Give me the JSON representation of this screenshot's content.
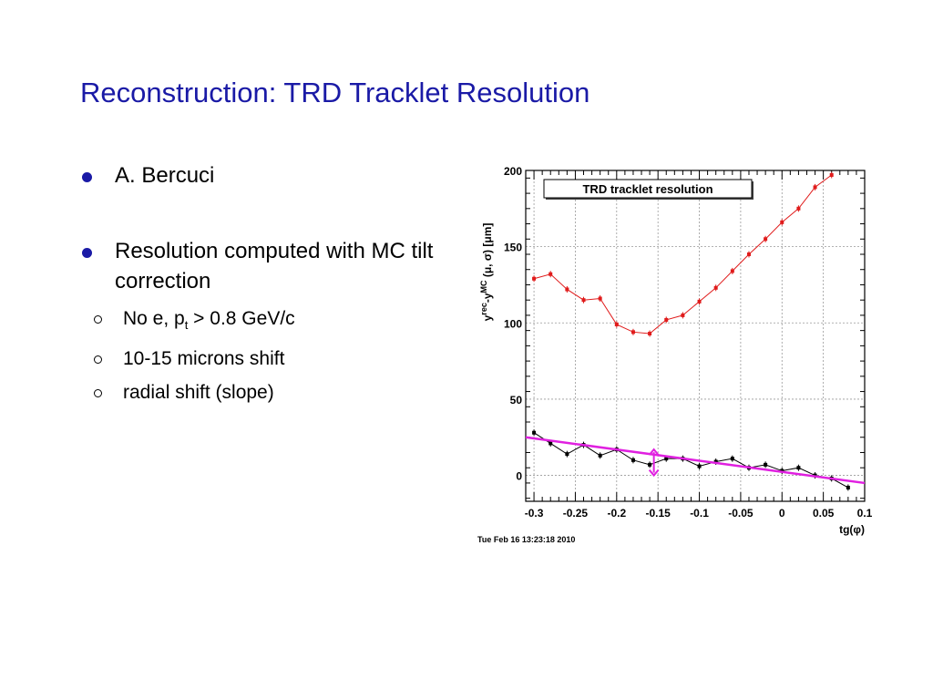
{
  "slide": {
    "title": "Reconstruction: TRD Tracklet Resolution",
    "bullets": [
      {
        "text": "A. Bercuci"
      },
      {
        "text": "Resolution computed with MC tilt correction",
        "subs": [
          {
            "pre": "No e, p",
            "sub": "t",
            "post": " > 0.8 GeV/c"
          },
          {
            "text": "10-15 microns shift"
          },
          {
            "text": "radial shift (slope)"
          }
        ]
      }
    ]
  },
  "colors": {
    "title": "#1a1aa6",
    "bullet": "#1a1aa6",
    "sigma": "#e01b1b",
    "mu": "#000000",
    "fit": "#e020e0"
  },
  "chart_data": {
    "type": "line",
    "title": "TRD tracklet resolution",
    "xlabel": "tg(φ)",
    "ylabel_parts": [
      "y",
      "rec",
      "-y",
      "MC",
      " (μ, σ) [μm]"
    ],
    "timestamp": "Tue Feb 16 13:23:18 2010",
    "xlim": [
      -0.31,
      0.1
    ],
    "ylim": [
      -17,
      200
    ],
    "xticks": [
      -0.3,
      -0.25,
      -0.2,
      -0.15,
      -0.1,
      -0.05,
      0,
      0.05,
      0.1
    ],
    "xtick_labels": [
      "-0.3",
      "-0.25",
      "-0.2",
      "-0.15",
      "-0.1",
      "-0.05",
      "0",
      "0.05",
      "0.1"
    ],
    "yticks": [
      0,
      50,
      100,
      150,
      200
    ],
    "ytick_labels": [
      "0",
      "50",
      "100",
      "150",
      "200"
    ],
    "grid": true,
    "series": [
      {
        "values": [
          [
            -0.3,
            129
          ],
          [
            -0.28,
            132
          ],
          [
            -0.26,
            122
          ],
          [
            -0.24,
            115
          ],
          [
            -0.22,
            116
          ],
          [
            -0.2,
            99
          ],
          [
            -0.18,
            94
          ],
          [
            -0.16,
            93
          ],
          [
            -0.14,
            102
          ],
          [
            -0.12,
            105
          ],
          [
            -0.1,
            114
          ],
          [
            -0.08,
            123
          ],
          [
            -0.06,
            134
          ],
          [
            -0.04,
            145
          ],
          [
            -0.02,
            155
          ],
          [
            0.0,
            166
          ],
          [
            0.02,
            175
          ],
          [
            0.04,
            189
          ],
          [
            0.06,
            197
          ]
        ]
      },
      {
        "values": [
          [
            -0.3,
            28
          ],
          [
            -0.28,
            21
          ],
          [
            -0.26,
            14
          ],
          [
            -0.24,
            20
          ],
          [
            -0.22,
            13
          ],
          [
            -0.2,
            17
          ],
          [
            -0.18,
            10
          ],
          [
            -0.16,
            7
          ],
          [
            -0.14,
            11
          ],
          [
            -0.12,
            11
          ],
          [
            -0.1,
            6
          ],
          [
            -0.08,
            9
          ],
          [
            -0.06,
            11
          ],
          [
            -0.04,
            5
          ],
          [
            -0.02,
            7
          ],
          [
            0.0,
            3
          ],
          [
            0.02,
            5
          ],
          [
            0.04,
            0
          ],
          [
            0.06,
            -2
          ],
          [
            0.08,
            -8
          ]
        ]
      }
    ],
    "fit_line": [
      [
        -0.31,
        25
      ],
      [
        0.1,
        -5
      ]
    ],
    "arrow": {
      "x": -0.155,
      "y_low": 0,
      "y_high": 17
    }
  }
}
